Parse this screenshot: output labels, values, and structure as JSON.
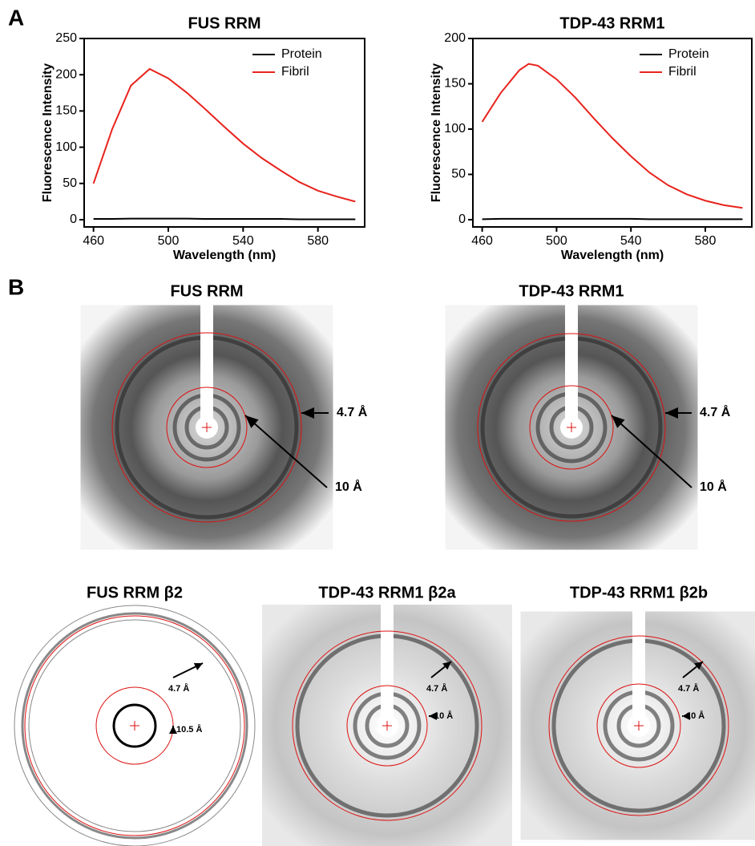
{
  "chart_data": [
    {
      "type": "line",
      "title": "FUS RRM",
      "x_label": "Wavelength (nm)",
      "y_label": "Fluorescence Intensity",
      "x": [
        460,
        470,
        480,
        490,
        500,
        510,
        520,
        530,
        540,
        550,
        560,
        570,
        580,
        590,
        600
      ],
      "series": [
        {
          "name": "Protein",
          "color": "#000000",
          "values": [
            1,
            1,
            1.5,
            1.5,
            1.5,
            1.5,
            1,
            1,
            1,
            1,
            1,
            0.5,
            0.5,
            0.5,
            0.5
          ]
        },
        {
          "name": "Fibril",
          "color": "#e8231d",
          "values": [
            50,
            125,
            185,
            208,
            195,
            175,
            152,
            128,
            105,
            85,
            68,
            52,
            40,
            32,
            25
          ]
        }
      ],
      "xlim": [
        455,
        605
      ],
      "xticks": [
        460,
        500,
        540,
        580
      ],
      "ylim": [
        -10,
        250
      ],
      "yticks": [
        0,
        50,
        100,
        150,
        200,
        250
      ],
      "legend": "top-right"
    },
    {
      "type": "line",
      "title": "TDP-43 RRM1",
      "x_label": "Wavelength (nm)",
      "y_label": "Fluorescence Intensity",
      "x": [
        460,
        470,
        480,
        485,
        490,
        500,
        510,
        520,
        530,
        540,
        550,
        560,
        570,
        580,
        590,
        600
      ],
      "series": [
        {
          "name": "Protein",
          "color": "#000000",
          "values": [
            0.5,
            1,
            1,
            1,
            1,
            1,
            1,
            1,
            1,
            1,
            0.5,
            0.5,
            0.5,
            0.5,
            0.5,
            0.5
          ]
        },
        {
          "name": "Fibril",
          "color": "#e8231d",
          "values": [
            108,
            140,
            165,
            172,
            170,
            155,
            135,
            112,
            90,
            70,
            52,
            38,
            28,
            21,
            16,
            13
          ]
        }
      ],
      "xlim": [
        455,
        605
      ],
      "xticks": [
        460,
        500,
        540,
        580
      ],
      "ylim": [
        -8,
        200
      ],
      "yticks": [
        0,
        50,
        100,
        150,
        200
      ],
      "legend": "top-right"
    }
  ],
  "figure": {
    "panel_labels": [
      "A",
      "B"
    ],
    "diffraction": [
      {
        "title": "FUS RRM",
        "annotations": [
          "4.7 Å",
          "10 Å"
        ]
      },
      {
        "title": "TDP-43 RRM1",
        "annotations": [
          "4.7 Å",
          "10 Å"
        ]
      },
      {
        "title": "FUS RRM β2",
        "annotations": [
          "4.7 Å",
          "10.5 Å"
        ]
      },
      {
        "title": "TDP-43 RRM1 β2a",
        "annotations": [
          "4.7 Å",
          "10 Å"
        ]
      },
      {
        "title": "TDP-43 RRM1 β2b",
        "annotations": [
          "4.7 Å",
          "10 Å"
        ]
      }
    ]
  }
}
